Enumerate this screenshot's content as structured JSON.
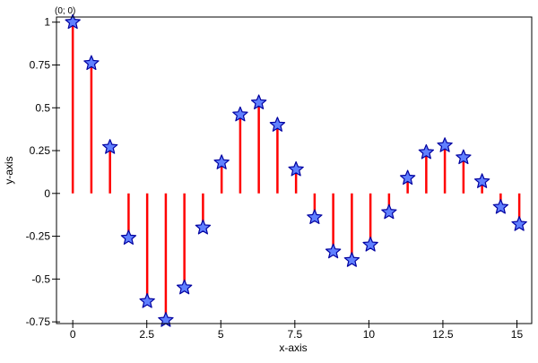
{
  "chart_data": {
    "type": "stem",
    "xlabel": "x-axis",
    "ylabel": "y-axis",
    "annotation": "(0; 0)",
    "xlim": [
      -0.55,
      15.5
    ],
    "ylim": [
      -0.76,
      1.03
    ],
    "xticks": [
      0,
      2.5,
      5,
      7.5,
      10,
      12.5,
      15
    ],
    "xtick_labels": [
      "0",
      "2.5",
      "5",
      "7.5",
      "10",
      "12.5",
      "15"
    ],
    "yticks": [
      -0.75,
      -0.5,
      -0.25,
      0,
      0.25,
      0.5,
      0.75,
      1
    ],
    "ytick_labels": [
      "-0.75",
      "-0.5",
      "-0.25",
      "0",
      "0.25",
      "0.5",
      "0.75",
      "1"
    ],
    "grid": false,
    "stem_color": "#ff0000",
    "marker": "star",
    "marker_fill": "#6080ff",
    "marker_edge": "#0000a0",
    "x": [
      0,
      0.628,
      1.257,
      1.885,
      2.513,
      3.142,
      3.77,
      4.398,
      5.027,
      5.655,
      6.283,
      6.912,
      7.54,
      8.168,
      8.796,
      9.425,
      10.053,
      10.681,
      11.31,
      11.938,
      12.566,
      13.195,
      13.823,
      14.451,
      15.08
    ],
    "y": [
      1.0,
      0.76,
      0.27,
      -0.26,
      -0.63,
      -0.74,
      -0.55,
      -0.2,
      0.18,
      0.46,
      0.53,
      0.4,
      0.14,
      -0.14,
      -0.34,
      -0.39,
      -0.3,
      -0.11,
      0.09,
      0.24,
      0.28,
      0.21,
      0.07,
      -0.08,
      -0.18
    ]
  }
}
